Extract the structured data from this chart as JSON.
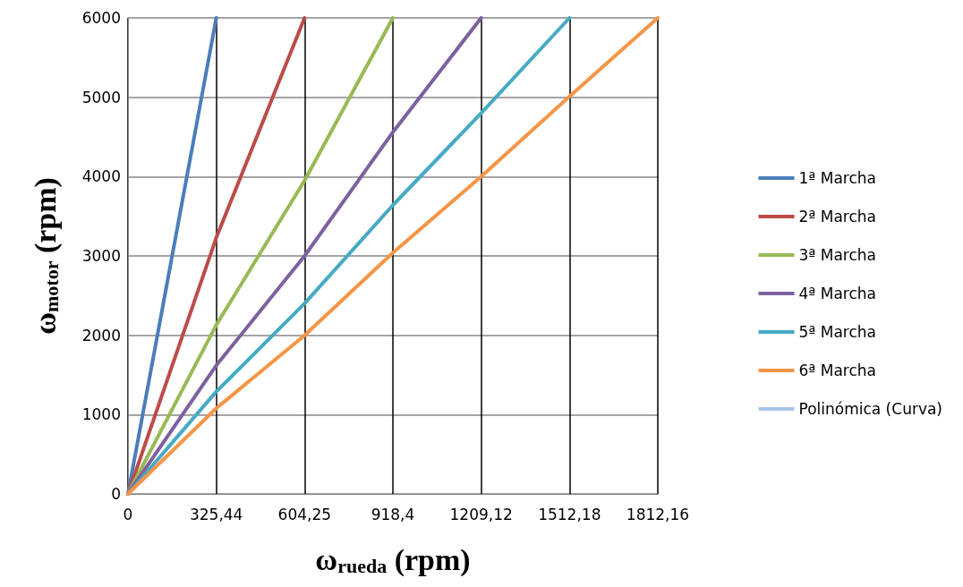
{
  "chart_data": {
    "type": "line",
    "xlabel": "ω$_{rueda}$ (rpm)",
    "ylabel": "ω$_{motor}$ (rpm)",
    "categories": [
      "0",
      "325,44",
      "604,25",
      "918,4",
      "1209,12",
      "1512,18",
      "1812,16"
    ],
    "ylim": [
      0,
      6000
    ],
    "yticks": [
      0,
      1000,
      2000,
      3000,
      4000,
      5000,
      6000
    ],
    "grid": true,
    "legend": "right",
    "marker": "none",
    "line_style": "solid",
    "series": [
      {
        "name": "1ª Marcha",
        "color": "#4a7ebb",
        "values": [
          0,
          6000,
          null,
          null,
          null,
          null,
          null
        ]
      },
      {
        "name": "2ª Marcha",
        "color": "#be4b48",
        "values": [
          0,
          3230,
          6000,
          null,
          null,
          null,
          null
        ]
      },
      {
        "name": "3ª Marcha",
        "color": "#98b954",
        "values": [
          0,
          2130,
          3950,
          6000,
          null,
          null,
          null
        ]
      },
      {
        "name": "4ª Marcha",
        "color": "#7d60a0",
        "values": [
          0,
          1620,
          3000,
          4560,
          6000,
          null,
          null
        ]
      },
      {
        "name": "5ª Marcha",
        "color": "#46aac5",
        "values": [
          0,
          1290,
          2400,
          3640,
          4800,
          6000,
          null
        ]
      },
      {
        "name": "6ª Marcha",
        "color": "#f69546",
        "values": [
          0,
          1080,
          2000,
          3040,
          4000,
          5010,
          6000
        ]
      },
      {
        "name": "Polinómica (Curva)",
        "color": "#a9c4eb",
        "values": [
          null,
          null,
          null,
          null,
          null,
          null,
          null
        ]
      }
    ]
  }
}
